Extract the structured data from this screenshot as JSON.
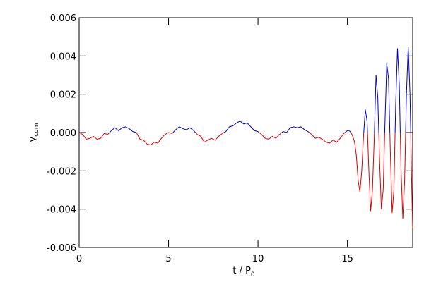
{
  "chart_data": {
    "type": "line",
    "x_label": {
      "text": "t / P",
      "subscript": "0"
    },
    "y_label": {
      "text": "y",
      "subscript": "com"
    },
    "xlim": [
      0,
      18.65
    ],
    "ylim": [
      -0.006,
      0.006
    ],
    "xticks": [
      0,
      5,
      10,
      15
    ],
    "yticks": [
      0.006,
      0.004,
      0.002,
      {
        "value": 0,
        "label": "0.000"
      },
      -0.002,
      -0.004,
      -0.006
    ],
    "positive_color": "#0000cc",
    "negative_color": "#dd0000",
    "x": [
      0,
      0.2,
      0.4,
      0.6,
      0.8,
      1.0,
      1.2,
      1.4,
      1.6,
      1.8,
      2.0,
      2.2,
      2.4,
      2.6,
      2.8,
      3.0,
      3.2,
      3.4,
      3.6,
      3.8,
      4.0,
      4.2,
      4.4,
      4.6,
      4.8,
      5.0,
      5.2,
      5.4,
      5.6,
      5.8,
      6.0,
      6.2,
      6.4,
      6.6,
      6.8,
      7.0,
      7.2,
      7.4,
      7.6,
      7.8,
      8.0,
      8.2,
      8.4,
      8.6,
      8.8,
      9.0,
      9.2,
      9.4,
      9.6,
      9.8,
      10.0,
      10.2,
      10.4,
      10.6,
      10.8,
      11.0,
      11.2,
      11.4,
      11.6,
      11.8,
      12.0,
      12.2,
      12.4,
      12.6,
      12.8,
      13.0,
      13.2,
      13.4,
      13.6,
      13.8,
      14.0,
      14.2,
      14.4,
      14.6,
      14.8,
      15.0,
      15.1,
      15.2,
      15.3,
      15.4,
      15.5,
      15.6,
      15.7,
      15.8,
      15.9,
      16.0,
      16.1,
      16.2,
      16.3,
      16.4,
      16.5,
      16.6,
      16.7,
      16.8,
      16.9,
      17.0,
      17.1,
      17.2,
      17.3,
      17.4,
      17.5,
      17.6,
      17.7,
      17.8,
      17.9,
      18.0,
      18.1,
      18.2,
      18.3,
      18.4,
      18.5,
      18.6,
      18.65
    ],
    "values": [
      0.0,
      -0.0001,
      -0.00035,
      -0.0003,
      -0.0002,
      -0.00035,
      -0.0003,
      -5e-05,
      -0.0001,
      0.0001,
      0.00025,
      0.0001,
      0.00025,
      0.0003,
      0.0002,
      5e-05,
      0.0,
      -0.00035,
      -0.0004,
      -0.0006,
      -0.00065,
      -0.0005,
      -0.00055,
      -0.0003,
      -0.0001,
      0.0,
      -5e-05,
      0.00015,
      0.0003,
      0.0002,
      0.00015,
      0.00025,
      0.0001,
      -0.0001,
      -0.0002,
      -0.0005,
      -0.0004,
      -0.0003,
      -0.0004,
      -0.0002,
      -5e-05,
      5e-05,
      0.0003,
      0.00035,
      0.0005,
      0.0006,
      0.00045,
      0.0005,
      0.0003,
      0.0001,
      5e-05,
      -0.0001,
      -0.0003,
      -0.00035,
      -0.0002,
      -0.0003,
      -0.0001,
      5e-05,
      0.0,
      0.00025,
      0.0003,
      0.00025,
      0.0003,
      0.00015,
      5e-05,
      -0.0001,
      -0.0003,
      -0.00025,
      -0.00035,
      -0.0005,
      -0.00055,
      -0.0004,
      -0.0005,
      -0.0003,
      -5e-05,
      0.0001,
      0.0001,
      0.0,
      -0.0002,
      -0.0005,
      -0.0012,
      -0.0025,
      -0.0031,
      -0.002,
      -0.0002,
      0.0012,
      0.0006,
      -0.002,
      -0.0041,
      -0.003,
      -0.0003,
      0.003,
      0.0018,
      -0.0015,
      -0.004,
      -0.003,
      0.0005,
      0.0036,
      0.0028,
      -0.001,
      -0.0042,
      -0.003,
      0.0015,
      0.0044,
      0.0025,
      -0.002,
      -0.0045,
      -0.0025,
      0.002,
      0.0045,
      0.002,
      -0.003,
      -0.005
    ]
  }
}
